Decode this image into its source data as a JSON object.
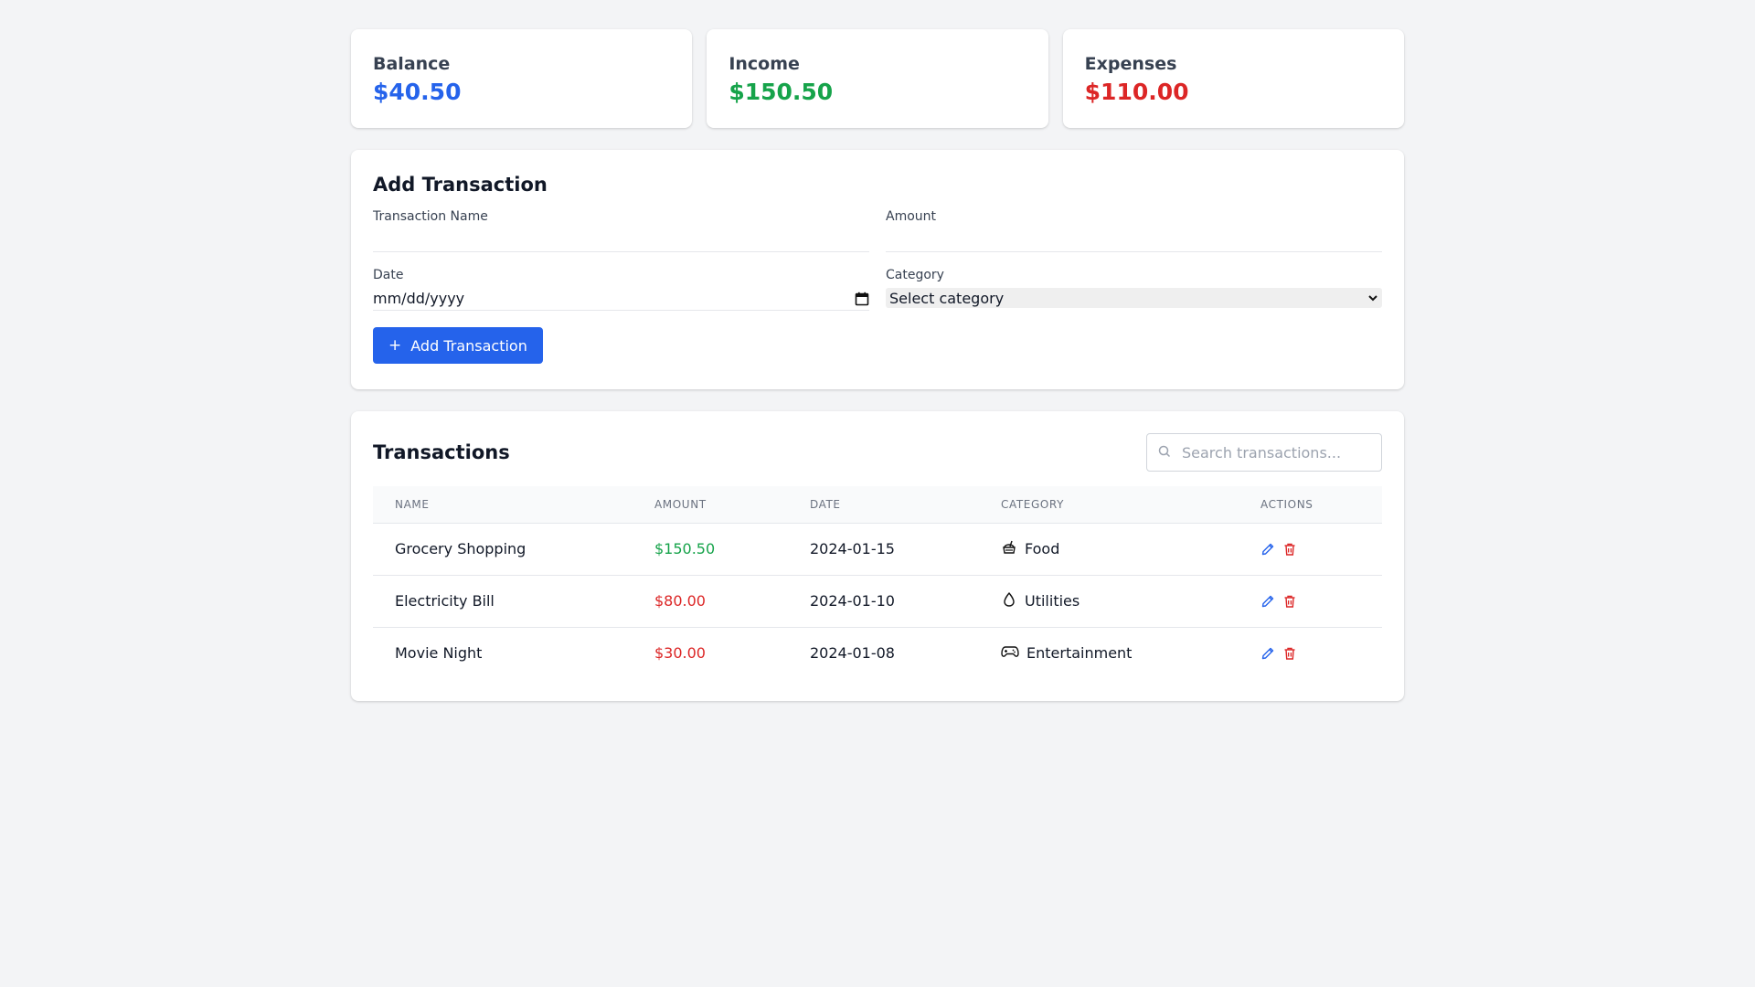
{
  "colors": {
    "balance": "#2563eb",
    "income": "#16a34a",
    "expense": "#dc2626",
    "edit": "#2563eb",
    "delete": "#dc2626",
    "primary": "#2563eb"
  },
  "summary": [
    {
      "label": "Balance",
      "value": "$40.50",
      "color": "#2563eb"
    },
    {
      "label": "Income",
      "value": "$150.50",
      "color": "#16a34a"
    },
    {
      "label": "Expenses",
      "value": "$110.00",
      "color": "#dc2626"
    }
  ],
  "form": {
    "title": "Add Transaction",
    "name_label": "Transaction Name",
    "name_value": "",
    "amount_label": "Amount",
    "amount_value": "",
    "date_label": "Date",
    "date_placeholder": "mm/dd/yyyy",
    "category_label": "Category",
    "category_selected": "Select category",
    "submit_icon": "plus-icon",
    "submit_label": "Add Transaction"
  },
  "transactions": {
    "title": "Transactions",
    "search_placeholder": "Search transactions...",
    "columns": [
      "NAME",
      "AMOUNT",
      "DATE",
      "CATEGORY",
      "ACTIONS"
    ],
    "rows": [
      {
        "name": "Grocery Shopping",
        "amount": "$150.50",
        "amount_color": "#16a34a",
        "date": "2024-01-15",
        "category": "Food",
        "category_icon": "food-icon"
      },
      {
        "name": "Electricity Bill",
        "amount": "$80.00",
        "amount_color": "#dc2626",
        "date": "2024-01-10",
        "category": "Utilities",
        "category_icon": "droplet-icon"
      },
      {
        "name": "Movie Night",
        "amount": "$30.00",
        "amount_color": "#dc2626",
        "date": "2024-01-08",
        "category": "Entertainment",
        "category_icon": "gamepad-icon"
      }
    ]
  }
}
